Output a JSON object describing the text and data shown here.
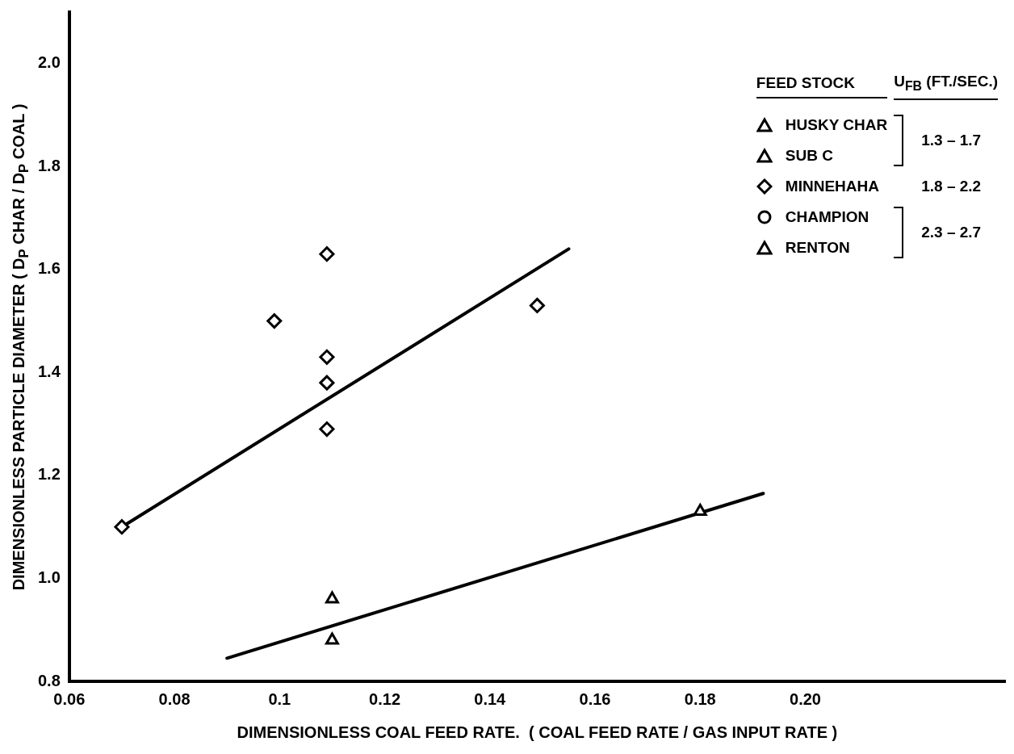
{
  "chart_data": {
    "type": "scatter",
    "xlabel": "DIMENSIONLESS COAL FEED RATE.  ( COAL FEED RATE / GAS INPUT RATE )",
    "ylabel": "DIMENSIONLESS PARTICLE DIAMETER ( D$_{P}$ CHAR / D$_{P}$ COAL )",
    "legend_title": "FEED STOCK",
    "annotations": [
      "U$_{FB}$ (FT./SEC.)",
      "1.3 – 1.7",
      "1.8 – 2.2",
      "2.3 – 2.7"
    ],
    "series": [
      {
        "name": "HUSKY CHAR",
        "color": "#000000",
        "marker": "triangle",
        "x": [
          0.18
        ],
        "values": [
          1.13
        ]
      },
      {
        "name": "SUB C",
        "color": "#000000",
        "marker": "triangle",
        "x": [
          0.11,
          0.11
        ],
        "values": [
          0.96,
          0.88
        ]
      },
      {
        "name": "MINNEHAHA",
        "color": "#000000",
        "marker": "diamond",
        "x": [
          0.07,
          0.099,
          0.109,
          0.109,
          0.109,
          0.109,
          0.149
        ],
        "values": [
          1.1,
          1.5,
          1.63,
          1.43,
          1.38,
          1.29,
          1.53
        ]
      },
      {
        "name": "CHAMPION",
        "color": "#000000",
        "marker": "circle"
      },
      {
        "name": "RENTON",
        "color": "#000000",
        "marker": "triangle"
      },
      {
        "type": "line",
        "color": "#000000",
        "marker": "none",
        "x": [
          0.07,
          0.155
        ],
        "values": [
          1.1,
          1.64
        ]
      },
      {
        "type": "line",
        "color": "#000000",
        "marker": "none",
        "x": [
          0.09,
          0.192
        ],
        "values": [
          0.845,
          1.165
        ]
      }
    ],
    "xlim": [
      0.06,
      0.238
    ],
    "xticks": [
      {
        "value": 0.06,
        "label": "0.06"
      },
      {
        "value": 0.08,
        "label": "0.08"
      },
      {
        "value": 0.1,
        "label": "0.1"
      },
      {
        "value": 0.12,
        "label": "0.12"
      },
      {
        "value": 0.14,
        "label": "0.14"
      },
      {
        "value": 0.16,
        "label": "0.16"
      },
      {
        "value": 0.18,
        "label": "0.18"
      },
      {
        "value": 0.2,
        "label": "0.20"
      }
    ],
    "ylim": [
      0.8,
      2.1
    ],
    "yticks": [
      {
        "value": 0.8,
        "label": "0.8"
      },
      {
        "value": 1.0,
        "label": "1.0"
      },
      {
        "value": 1.2,
        "label": "1.2"
      },
      {
        "value": 1.4,
        "label": "1.4"
      },
      {
        "value": 1.6,
        "label": "1.6"
      },
      {
        "value": 1.8,
        "label": "1.8"
      },
      {
        "value": 2.0,
        "label": "2.0"
      }
    ],
    "grid": false,
    "legend": "top right"
  }
}
